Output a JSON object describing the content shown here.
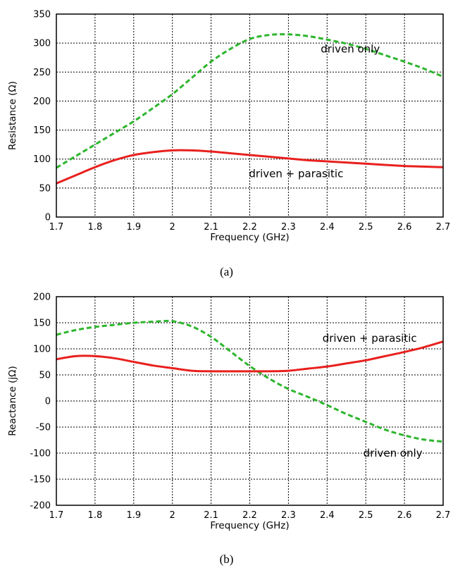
{
  "chart_data": [
    {
      "type": "line",
      "caption": "(a)",
      "xlabel": "Frequency (GHz)",
      "ylabel": "Resistance (Ω)",
      "xlim": [
        1.7,
        2.7
      ],
      "ylim": [
        0,
        350
      ],
      "x_ticks": [
        "1.7",
        "1.8",
        "1.9",
        "2",
        "2.1",
        "2.2",
        "2.3",
        "2.4",
        "2.5",
        "2.6",
        "2.7"
      ],
      "y_ticks": [
        "0",
        "50",
        "100",
        "150",
        "200",
        "250",
        "300",
        "350"
      ],
      "grid": true,
      "series": [
        {
          "name": "driven only",
          "color": "#2db52d",
          "dash": "dashed",
          "x": [
            1.7,
            1.75,
            1.8,
            1.85,
            1.9,
            1.95,
            2.0,
            2.05,
            2.1,
            2.15,
            2.2,
            2.25,
            2.3,
            2.35,
            2.4,
            2.45,
            2.5,
            2.55,
            2.6,
            2.65,
            2.7
          ],
          "y": [
            85,
            105,
            125,
            145,
            165,
            188,
            212,
            240,
            268,
            290,
            307,
            314,
            315,
            312,
            306,
            299,
            290,
            279,
            268,
            256,
            242
          ]
        },
        {
          "name": "driven + parasitic",
          "color": "#e8201e",
          "dash": "solid",
          "x": [
            1.7,
            1.75,
            1.8,
            1.85,
            1.9,
            1.95,
            2.0,
            2.05,
            2.1,
            2.15,
            2.2,
            2.25,
            2.3,
            2.35,
            2.4,
            2.45,
            2.5,
            2.55,
            2.6,
            2.65,
            2.7
          ],
          "y": [
            58,
            72,
            86,
            98,
            107,
            112,
            115,
            115,
            113,
            110,
            107,
            104,
            101,
            98,
            96,
            94,
            92,
            90,
            88,
            87,
            86
          ]
        }
      ],
      "annotations": [
        {
          "text": "driven only",
          "x": 2.46,
          "y": 290
        },
        {
          "text": "driven + parasitic",
          "x": 2.32,
          "y": 75
        }
      ]
    },
    {
      "type": "line",
      "caption": "(b)",
      "xlabel": "Frequency (GHz)",
      "ylabel": "Reactance (jΩ)",
      "xlim": [
        1.7,
        2.7
      ],
      "ylim": [
        -200,
        200
      ],
      "x_ticks": [
        "1.7",
        "1.8",
        "1.9",
        "2",
        "2.1",
        "2.2",
        "2.3",
        "2.4",
        "2.5",
        "2.6",
        "2.7"
      ],
      "y_ticks": [
        "-200",
        "-150",
        "-100",
        "-50",
        "0",
        "50",
        "100",
        "150",
        "200"
      ],
      "grid": true,
      "series": [
        {
          "name": "driven only",
          "color": "#2db52d",
          "dash": "dashed",
          "x": [
            1.7,
            1.75,
            1.8,
            1.85,
            1.9,
            1.95,
            2.0,
            2.05,
            2.1,
            2.15,
            2.2,
            2.25,
            2.3,
            2.35,
            2.4,
            2.45,
            2.5,
            2.55,
            2.6,
            2.65,
            2.7
          ],
          "y": [
            127,
            136,
            142,
            146,
            150,
            152,
            153,
            143,
            123,
            95,
            67,
            43,
            23,
            8,
            -8,
            -25,
            -40,
            -55,
            -66,
            -74,
            -78
          ]
        },
        {
          "name": "driven + parasitic",
          "color": "#e8201e",
          "dash": "solid",
          "x": [
            1.7,
            1.75,
            1.8,
            1.85,
            1.9,
            1.95,
            2.0,
            2.05,
            2.1,
            2.15,
            2.2,
            2.25,
            2.3,
            2.35,
            2.4,
            2.45,
            2.5,
            2.55,
            2.6,
            2.65,
            2.7
          ],
          "y": [
            80,
            86,
            86,
            82,
            75,
            68,
            63,
            58,
            57,
            57,
            57,
            57,
            58,
            62,
            66,
            72,
            78,
            86,
            94,
            103,
            114
          ]
        }
      ],
      "annotations": [
        {
          "text": "driven + parasitic",
          "x": 2.51,
          "y": 120
        },
        {
          "text": "driven only",
          "x": 2.57,
          "y": -100
        }
      ]
    }
  ]
}
